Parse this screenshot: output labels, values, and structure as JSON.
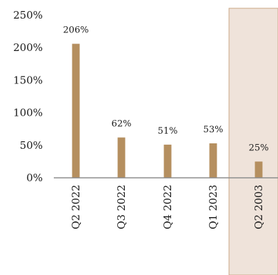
{
  "chart_data": {
    "type": "bar",
    "categories": [
      "Q2 2022",
      "Q3 2022",
      "Q4 2022",
      "Q1 2023",
      "Q2 2003"
    ],
    "values": [
      206,
      62,
      51,
      53,
      25
    ],
    "data_labels": [
      "206%",
      "62%",
      "51%",
      "53%",
      "25%"
    ],
    "ylim": [
      0,
      250
    ],
    "y_ticks": [
      0,
      50,
      100,
      150,
      200,
      250
    ],
    "y_tick_labels": [
      "0%",
      "50%",
      "100%",
      "150%",
      "200%",
      "250%"
    ],
    "grid": false,
    "highlight_category": "Q2 2003",
    "colors": {
      "bar": "#B58F5F",
      "highlight_fill": "#EFE3DA",
      "highlight_border": "#C9A583",
      "axis": "#8c8c8c"
    }
  }
}
